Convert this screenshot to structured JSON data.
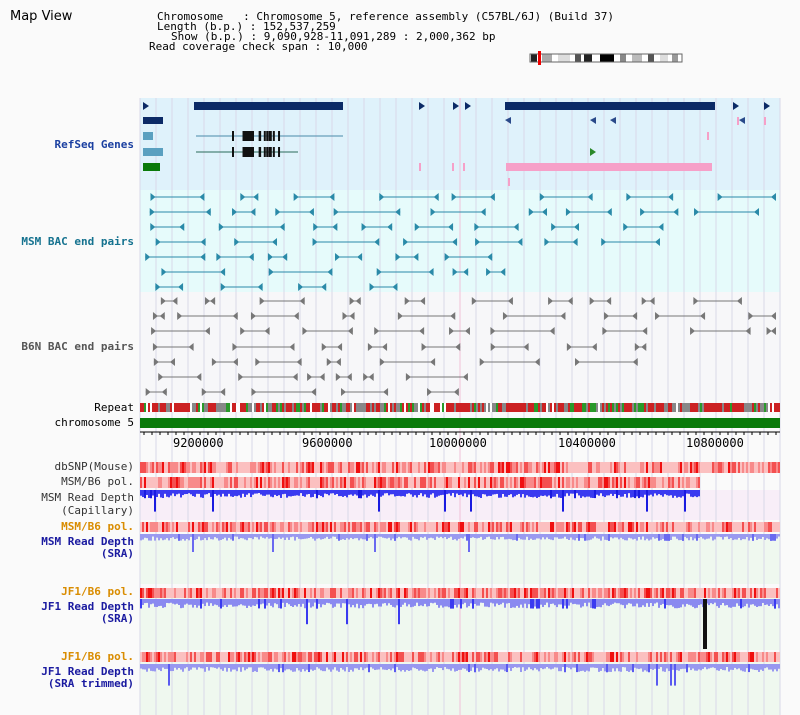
{
  "view_title": "Map View",
  "info": {
    "chromosome": "Chromosome   : Chromosome 5, reference assembly (C57BL/6J) (Build 37)",
    "length": "Length (b.p.) : 152,537,259",
    "show": "Show (b.p.) : 9,090,928-11,091,289 : 2,000,362 bp",
    "coverage": "Read coverage check span : 10,000"
  },
  "tracks": {
    "refseq": "RefSeq Genes",
    "msm_bac": "MSM BAC end pairs",
    "b6n_bac": "B6N BAC end pairs",
    "repeat": "Repeat",
    "chromosome": "chromosome 5",
    "dbsnp": "dbSNP(Mouse)",
    "msm_b6_pol_1": "MSM/B6 pol.",
    "msm_depth_cap_1": "MSM Read Depth",
    "msm_depth_cap_2": "(Capillary)",
    "msm_b6_pol_2": "MSM/B6 pol.",
    "msm_depth_sra_1": "MSM Read Depth",
    "msm_depth_sra_2": "(SRA)",
    "jf1_b6_pol_1": "JF1/B6 pol.",
    "jf1_depth_sra_1": "JF1 Read Depth",
    "jf1_depth_sra_2": "(SRA)",
    "jf1_b6_pol_2": "JF1/B6 pol.",
    "jf1_depth_trim_1": "JF1 Read Depth",
    "jf1_depth_trim_2": "(SRA trimmed)"
  },
  "axis_ticks": [
    "9200000",
    "9600000",
    "10000000",
    "10400000",
    "10800000"
  ],
  "colors": {
    "refseq_label": "#1a3fa0",
    "msm_bac_label": "#15728f",
    "b6n_bac_label": "#444444",
    "pol_label_orange": "#d98c00",
    "depth_label_blue": "#1a1aa0",
    "gene_dark": "#0b2a66",
    "gene_pink": "#f6a0c8",
    "chromosome_bar": "#0a7a0a"
  },
  "icons": {
    "chromosome_ideogram": "chromosome-ideogram-icon"
  }
}
